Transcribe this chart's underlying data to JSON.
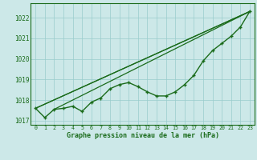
{
  "hours": [
    0,
    1,
    2,
    3,
    4,
    5,
    6,
    7,
    8,
    9,
    10,
    11,
    12,
    13,
    14,
    15,
    16,
    17,
    18,
    19,
    20,
    21,
    22,
    23
  ],
  "pressure_main": [
    1017.6,
    1017.15,
    1017.55,
    1017.6,
    1017.7,
    1017.45,
    1017.9,
    1018.1,
    1018.55,
    1018.75,
    1018.85,
    1018.65,
    1018.4,
    1018.2,
    1018.2,
    1018.4,
    1018.75,
    1019.2,
    1019.9,
    1020.4,
    1020.75,
    1021.1,
    1021.55,
    1022.3
  ],
  "straight_line1_x": [
    0,
    23
  ],
  "straight_line1_y": [
    1017.6,
    1022.3
  ],
  "straight_line2_x": [
    2,
    23
  ],
  "straight_line2_y": [
    1017.55,
    1022.3
  ],
  "straight_line3_x": [
    0,
    23
  ],
  "straight_line3_y": [
    1017.6,
    1022.3
  ],
  "bg_color": "#cce8e8",
  "grid_color": "#99cccc",
  "line_color": "#1a6b1a",
  "title": "Graphe pression niveau de la mer (hPa)",
  "ylim": [
    1016.8,
    1022.7
  ],
  "yticks": [
    1017,
    1018,
    1019,
    1020,
    1021,
    1022
  ],
  "xticks": [
    0,
    1,
    2,
    3,
    4,
    5,
    6,
    7,
    8,
    9,
    10,
    11,
    12,
    13,
    14,
    15,
    16,
    17,
    18,
    19,
    20,
    21,
    22,
    23
  ]
}
